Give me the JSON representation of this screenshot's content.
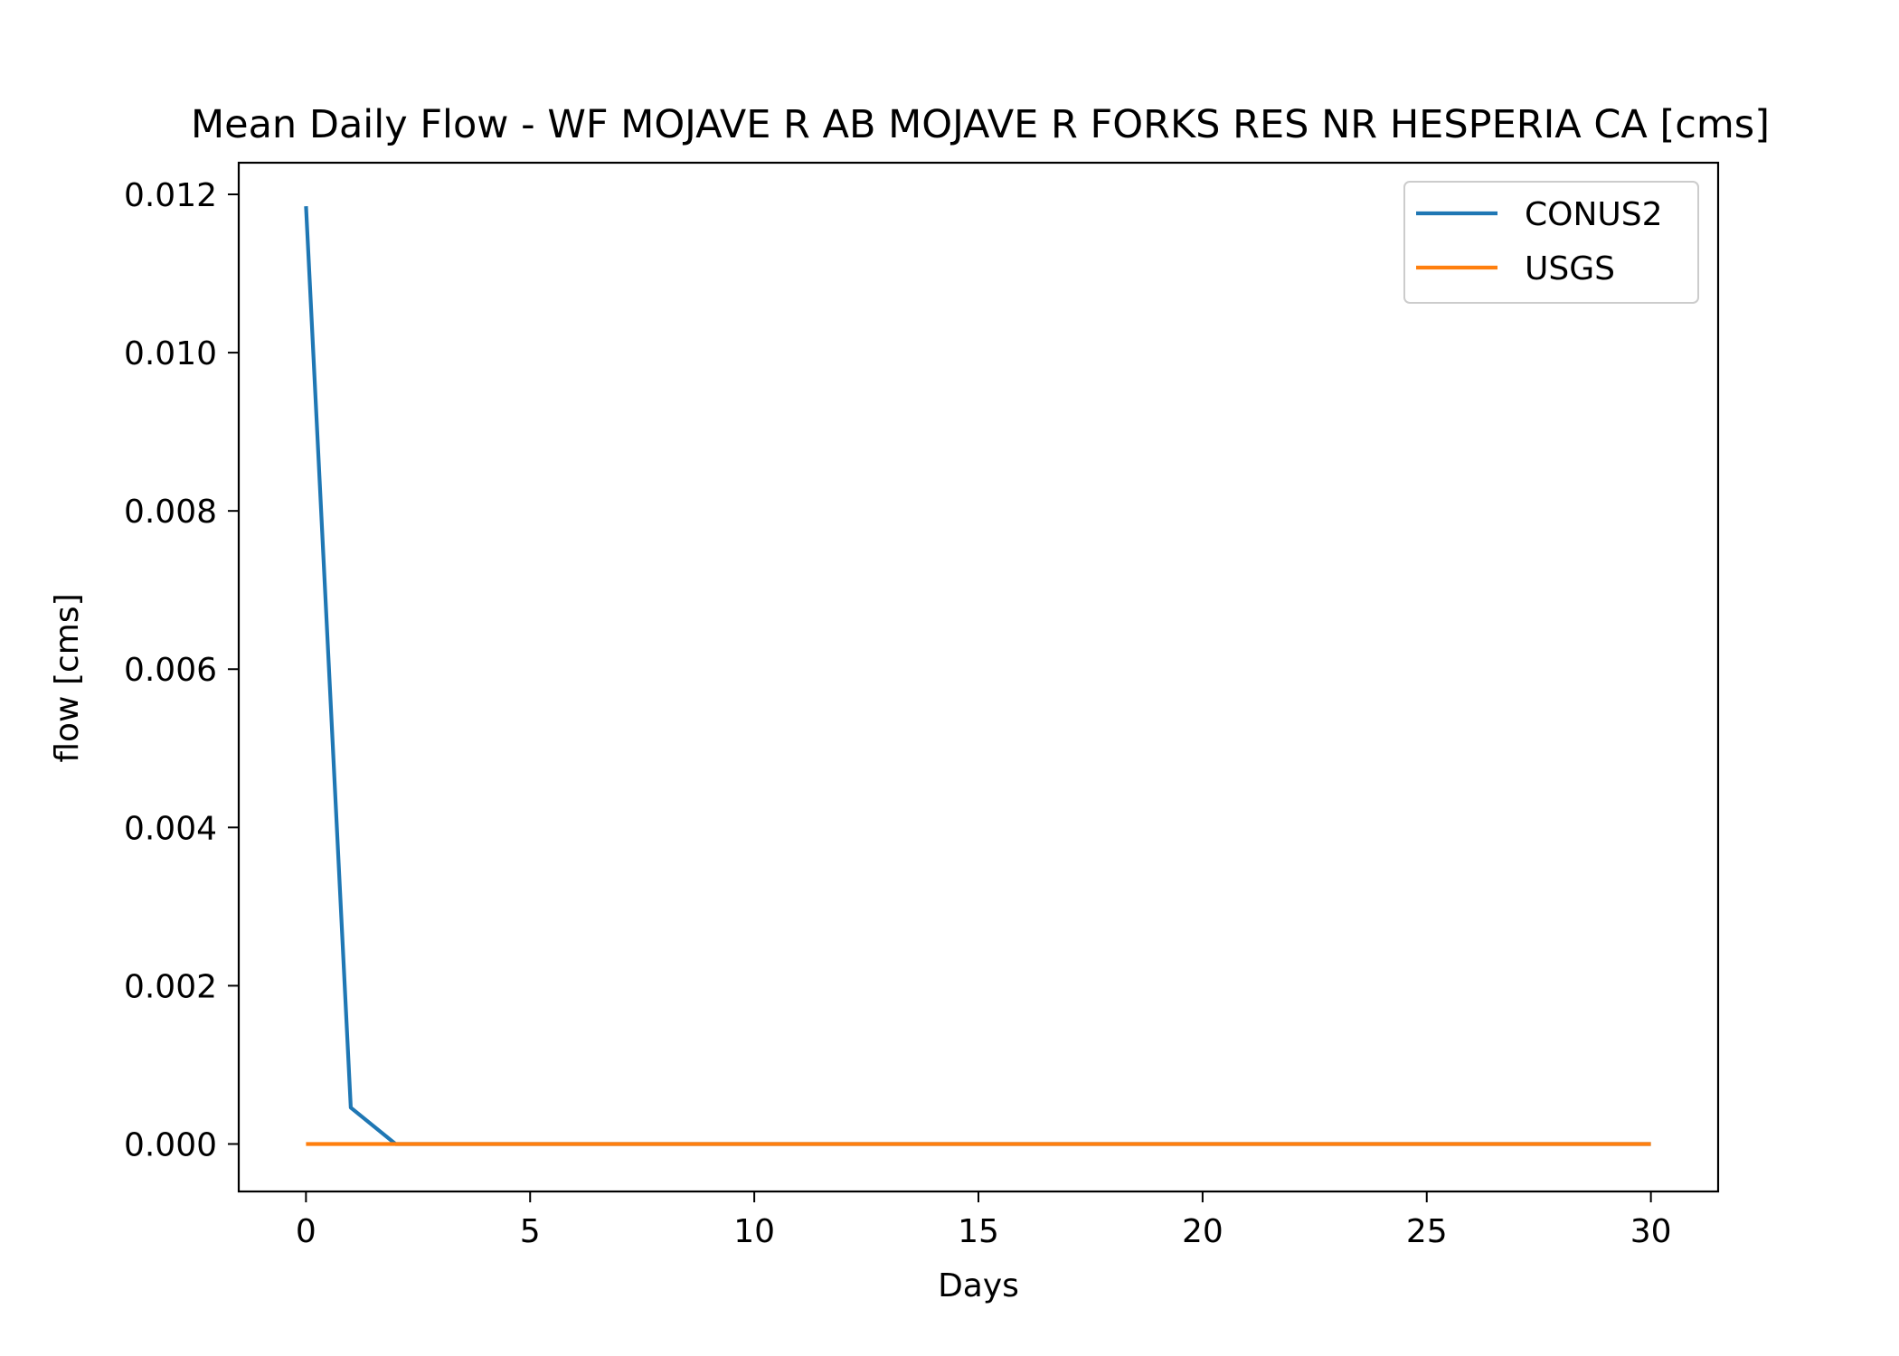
{
  "chart_data": {
    "type": "line",
    "title": "Mean Daily Flow - WF MOJAVE R AB MOJAVE R FORKS RES NR HESPERIA CA [cms]",
    "xlabel": "Days",
    "ylabel": "flow [cms]",
    "xlim": [
      -1.5,
      31.5
    ],
    "ylim": [
      -0.0006,
      0.0124
    ],
    "xticks": [
      0,
      5,
      10,
      15,
      20,
      25,
      30
    ],
    "xtick_labels": [
      "0",
      "5",
      "10",
      "15",
      "20",
      "25",
      "30"
    ],
    "yticks": [
      0,
      0.002,
      0.004,
      0.006,
      0.008,
      0.01,
      0.012
    ],
    "ytick_labels": [
      "0.000",
      "0.002",
      "0.004",
      "0.006",
      "0.008",
      "0.010",
      "0.012"
    ],
    "grid": false,
    "legend_position": "top-right",
    "x": [
      0,
      1,
      2,
      3,
      4,
      5,
      6,
      7,
      8,
      9,
      10,
      11,
      12,
      13,
      14,
      15,
      16,
      17,
      18,
      19,
      20,
      21,
      22,
      23,
      24,
      25,
      26,
      27,
      28,
      29,
      30
    ],
    "series": [
      {
        "name": "CONUS2",
        "color": "#1f77b4",
        "values": [
          0.01185,
          0.00046,
          0,
          0,
          0,
          0,
          0,
          0,
          0,
          0,
          0,
          0,
          0,
          0,
          0,
          0,
          0,
          0,
          0,
          0,
          0,
          0,
          0,
          0,
          0,
          0,
          0,
          0,
          0,
          0,
          0
        ]
      },
      {
        "name": "USGS",
        "color": "#ff7f0e",
        "values": [
          0,
          0,
          0,
          0,
          0,
          0,
          0,
          0,
          0,
          0,
          0,
          0,
          0,
          0,
          0,
          0,
          0,
          0,
          0,
          0,
          0,
          0,
          0,
          0,
          0,
          0,
          0,
          0,
          0,
          0,
          0
        ]
      }
    ]
  }
}
